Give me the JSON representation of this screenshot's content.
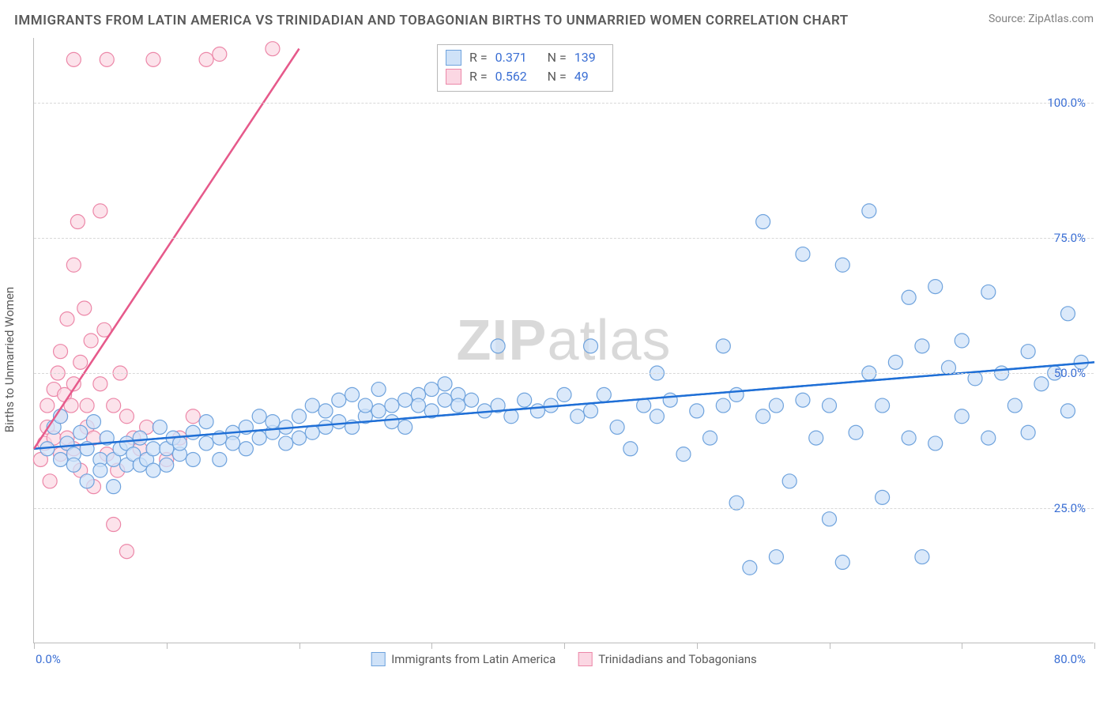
{
  "title": "IMMIGRANTS FROM LATIN AMERICA VS TRINIDADIAN AND TOBAGONIAN BIRTHS TO UNMARRIED WOMEN CORRELATION CHART",
  "source": "Source: ZipAtlas.com",
  "ylabel": "Births to Unmarried Women",
  "watermark_bold": "ZIP",
  "watermark_rest": "atlas",
  "chart": {
    "type": "scatter",
    "xlim": [
      0,
      80
    ],
    "ylim": [
      0,
      112
    ],
    "xticks": [
      0,
      10,
      20,
      30,
      40,
      50,
      60,
      70,
      80
    ],
    "yticks": [
      25,
      50,
      75,
      100
    ],
    "ytick_labels": [
      "25.0%",
      "50.0%",
      "75.0%",
      "100.0%"
    ],
    "xlabel_min": "0.0%",
    "xlabel_max": "80.0%",
    "grid_color": "#d8d8d8",
    "background": "#ffffff",
    "marker_radius": 9,
    "marker_stroke_width": 1.2,
    "series": [
      {
        "name": "Immigrants from Latin America",
        "fill": "#cfe2f8",
        "stroke": "#6fa3dd",
        "fill_opacity": 0.75,
        "trend": {
          "x1": 0,
          "y1": 36,
          "x2": 80,
          "y2": 52,
          "color": "#1f6fd6",
          "width": 2.4
        },
        "R": "0.371",
        "N": "139",
        "points": [
          [
            1,
            36
          ],
          [
            1.5,
            40
          ],
          [
            2,
            34
          ],
          [
            2,
            42
          ],
          [
            2.5,
            37
          ],
          [
            3,
            35
          ],
          [
            3,
            33
          ],
          [
            3.5,
            39
          ],
          [
            4,
            30
          ],
          [
            4,
            36
          ],
          [
            4.5,
            41
          ],
          [
            5,
            34
          ],
          [
            5,
            32
          ],
          [
            5.5,
            38
          ],
          [
            6,
            34
          ],
          [
            6,
            29
          ],
          [
            6.5,
            36
          ],
          [
            7,
            33
          ],
          [
            7,
            37
          ],
          [
            7.5,
            35
          ],
          [
            8,
            33
          ],
          [
            8,
            38
          ],
          [
            8.5,
            34
          ],
          [
            9,
            36
          ],
          [
            9,
            32
          ],
          [
            9.5,
            40
          ],
          [
            10,
            36
          ],
          [
            10,
            33
          ],
          [
            10.5,
            38
          ],
          [
            11,
            35
          ],
          [
            11,
            37
          ],
          [
            12,
            34
          ],
          [
            12,
            39
          ],
          [
            13,
            37
          ],
          [
            13,
            41
          ],
          [
            14,
            38
          ],
          [
            14,
            34
          ],
          [
            15,
            39
          ],
          [
            15,
            37
          ],
          [
            16,
            40
          ],
          [
            16,
            36
          ],
          [
            17,
            38
          ],
          [
            17,
            42
          ],
          [
            18,
            39
          ],
          [
            18,
            41
          ],
          [
            19,
            40
          ],
          [
            19,
            37
          ],
          [
            20,
            42
          ],
          [
            20,
            38
          ],
          [
            21,
            39
          ],
          [
            21,
            44
          ],
          [
            22,
            40
          ],
          [
            22,
            43
          ],
          [
            23,
            41
          ],
          [
            23,
            45
          ],
          [
            24,
            40
          ],
          [
            24,
            46
          ],
          [
            25,
            42
          ],
          [
            25,
            44
          ],
          [
            26,
            43
          ],
          [
            26,
            47
          ],
          [
            27,
            44
          ],
          [
            27,
            41
          ],
          [
            28,
            45
          ],
          [
            28,
            40
          ],
          [
            29,
            46
          ],
          [
            29,
            44
          ],
          [
            30,
            47
          ],
          [
            30,
            43
          ],
          [
            31,
            45
          ],
          [
            31,
            48
          ],
          [
            32,
            46
          ],
          [
            32,
            44
          ],
          [
            33,
            45
          ],
          [
            34,
            43
          ],
          [
            35,
            44
          ],
          [
            36,
            42
          ],
          [
            37,
            45
          ],
          [
            38,
            43
          ],
          [
            39,
            44
          ],
          [
            40,
            46
          ],
          [
            41,
            42
          ],
          [
            42,
            55
          ],
          [
            42,
            43
          ],
          [
            43,
            46
          ],
          [
            44,
            40
          ],
          [
            45,
            36
          ],
          [
            46,
            44
          ],
          [
            47,
            42
          ],
          [
            48,
            45
          ],
          [
            49,
            35
          ],
          [
            50,
            43
          ],
          [
            51,
            38
          ],
          [
            52,
            44
          ],
          [
            52,
            55
          ],
          [
            53,
            26
          ],
          [
            53,
            46
          ],
          [
            54,
            14
          ],
          [
            55,
            42
          ],
          [
            55,
            78
          ],
          [
            56,
            16
          ],
          [
            56,
            44
          ],
          [
            57,
            30
          ],
          [
            58,
            45
          ],
          [
            58,
            72
          ],
          [
            59,
            38
          ],
          [
            60,
            44
          ],
          [
            60,
            23
          ],
          [
            61,
            15
          ],
          [
            61,
            70
          ],
          [
            62,
            39
          ],
          [
            63,
            50
          ],
          [
            63,
            80
          ],
          [
            64,
            44
          ],
          [
            64,
            27
          ],
          [
            65,
            52
          ],
          [
            66,
            38
          ],
          [
            66,
            64
          ],
          [
            67,
            16
          ],
          [
            67,
            55
          ],
          [
            68,
            37
          ],
          [
            68,
            66
          ],
          [
            69,
            51
          ],
          [
            70,
            42
          ],
          [
            70,
            56
          ],
          [
            71,
            49
          ],
          [
            72,
            38
          ],
          [
            72,
            65
          ],
          [
            73,
            50
          ],
          [
            74,
            44
          ],
          [
            75,
            54
          ],
          [
            75,
            39
          ],
          [
            76,
            48
          ],
          [
            77,
            50
          ],
          [
            78,
            61
          ],
          [
            78,
            43
          ],
          [
            79,
            52
          ],
          [
            35,
            55
          ],
          [
            47,
            50
          ]
        ]
      },
      {
        "name": "Trinidadians and Tobagonians",
        "fill": "#fbd7e3",
        "stroke": "#ec87a8",
        "fill_opacity": 0.7,
        "trend": {
          "x1": 0,
          "y1": 36,
          "x2": 20,
          "y2": 110,
          "color": "#e65a8b",
          "width": 2.4
        },
        "R": "0.562",
        "N": "49",
        "points": [
          [
            0.5,
            34
          ],
          [
            0.8,
            37
          ],
          [
            1,
            40
          ],
          [
            1,
            44
          ],
          [
            1.2,
            30
          ],
          [
            1.5,
            47
          ],
          [
            1.5,
            38
          ],
          [
            1.8,
            50
          ],
          [
            2,
            35
          ],
          [
            2,
            42
          ],
          [
            2,
            54
          ],
          [
            2.3,
            46
          ],
          [
            2.5,
            38
          ],
          [
            2.5,
            60
          ],
          [
            2.8,
            44
          ],
          [
            3,
            36
          ],
          [
            3,
            70
          ],
          [
            3,
            48
          ],
          [
            3.3,
            78
          ],
          [
            3.5,
            32
          ],
          [
            3.5,
            52
          ],
          [
            3.8,
            62
          ],
          [
            4,
            40
          ],
          [
            4,
            44
          ],
          [
            4.3,
            56
          ],
          [
            4.5,
            29
          ],
          [
            4.5,
            38
          ],
          [
            5,
            48
          ],
          [
            5,
            80
          ],
          [
            5.3,
            58
          ],
          [
            5.5,
            35
          ],
          [
            5.5,
            108
          ],
          [
            6,
            44
          ],
          [
            6,
            22
          ],
          [
            6.3,
            32
          ],
          [
            6.5,
            50
          ],
          [
            7,
            42
          ],
          [
            7,
            17
          ],
          [
            7.5,
            38
          ],
          [
            8,
            36
          ],
          [
            8.5,
            40
          ],
          [
            9,
            108
          ],
          [
            10,
            34
          ],
          [
            11,
            38
          ],
          [
            12,
            42
          ],
          [
            13,
            108
          ],
          [
            14,
            109
          ],
          [
            18,
            110
          ],
          [
            3,
            108
          ]
        ]
      }
    ]
  }
}
